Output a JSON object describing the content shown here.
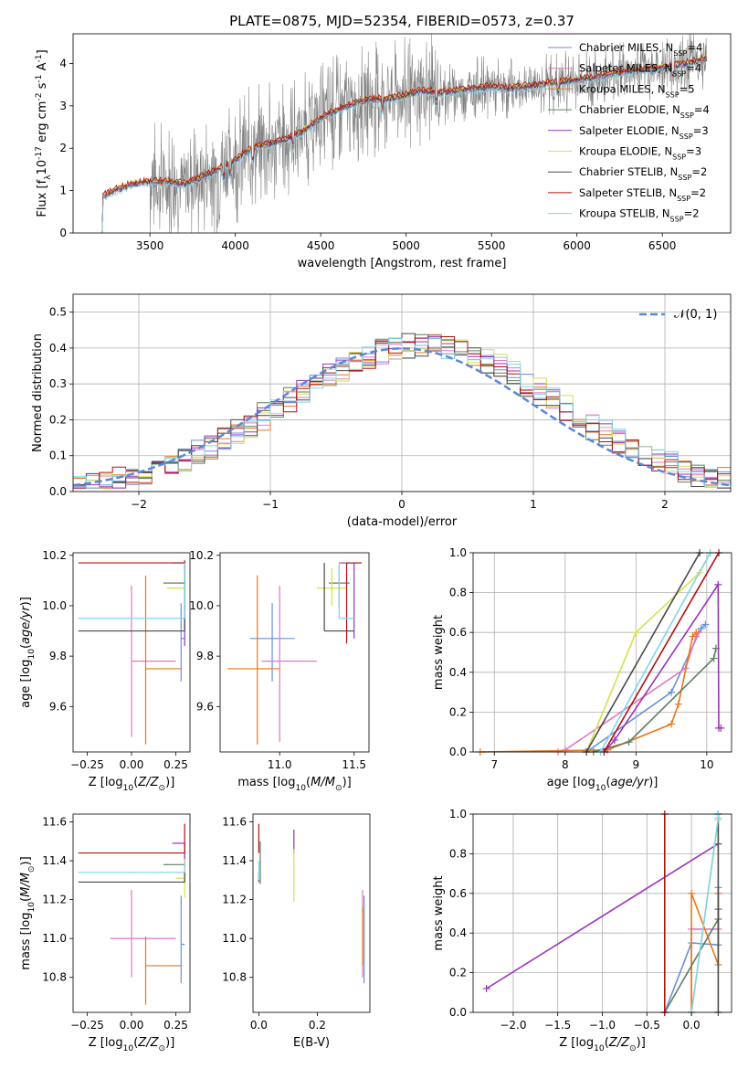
{
  "title": "PLATE=0875, MJD=52354, FIBERID=0573, z=0.37",
  "colors": {
    "chabrier_miles": "#6a8fd8",
    "salpeter_miles": "#e377c2",
    "kroupa_miles": "#e8771c",
    "chabrier_elodie": "#5f7f5f",
    "salpeter_elodie": "#9a32b8",
    "kroupa_elodie": "#d6e04a",
    "chabrier_stelib": "#4a4a4a",
    "salpeter_stelib": "#b01010",
    "kroupa_stelib": "#80d4ec",
    "data": "#808080",
    "gauss": "#5b87d9",
    "grid": "#b0b0b0"
  },
  "chart_data": [
    {
      "id": "spectrum",
      "type": "line",
      "xlabel": "wavelength [Angstrom, rest frame]",
      "ylabel": "Flux [f$_\\lambda$10$^{-17}$ erg cm$^{-2}$ s$^{-1}$ A$^{-1}$]",
      "xlim": [
        3050,
        6900
      ],
      "ylim": [
        0,
        4.7
      ],
      "xticks": [
        3500,
        4000,
        4500,
        5000,
        5500,
        6000,
        6500
      ],
      "yticks": [
        0,
        1,
        2,
        3,
        4
      ],
      "grid": false,
      "legend_position": "top-right",
      "legend": [
        {
          "label": "Chabrier MILES, N",
          "sub": "SSP",
          "suffix": "=4",
          "color_key": "chabrier_miles"
        },
        {
          "label": "Salpeter MILES, N",
          "sub": "SSP",
          "suffix": "=4",
          "color_key": "salpeter_miles"
        },
        {
          "label": "Kroupa MILES, N",
          "sub": "SSP",
          "suffix": "=5",
          "color_key": "kroupa_miles"
        },
        {
          "label": "Chabrier ELODIE, N",
          "sub": "SSP",
          "suffix": "=4",
          "color_key": "chabrier_elodie"
        },
        {
          "label": "Salpeter ELODIE, N",
          "sub": "SSP",
          "suffix": "=3",
          "color_key": "salpeter_elodie"
        },
        {
          "label": "Kroupa ELODIE, N",
          "sub": "SSP",
          "suffix": "=3",
          "color_key": "kroupa_elodie"
        },
        {
          "label": "Chabrier STELIB, N",
          "sub": "SSP",
          "suffix": "=2",
          "color_key": "chabrier_stelib"
        },
        {
          "label": "Salpeter STELIB, N",
          "sub": "SSP",
          "suffix": "=2",
          "color_key": "salpeter_stelib"
        },
        {
          "label": "Kroupa STELIB, N",
          "sub": "SSP",
          "suffix": "=2",
          "color_key": "kroupa_stelib"
        }
      ],
      "model_continuum": {
        "x": [
          3220,
          3300,
          3400,
          3500,
          3600,
          3700,
          3800,
          3900,
          4000,
          4100,
          4200,
          4300,
          4400,
          4500,
          4600,
          4700,
          4800,
          4900,
          5000,
          5100,
          5200,
          5300,
          5400,
          5500,
          5600,
          5700,
          5800,
          5900,
          6000,
          6100,
          6200,
          6300,
          6400,
          6500,
          6600,
          6700,
          6760
        ],
        "y": [
          0.85,
          1.0,
          1.15,
          1.2,
          1.2,
          1.15,
          1.3,
          1.5,
          1.7,
          2.0,
          2.1,
          2.2,
          2.4,
          2.7,
          2.9,
          3.05,
          3.15,
          3.15,
          3.25,
          3.35,
          3.3,
          3.35,
          3.4,
          3.45,
          3.4,
          3.45,
          3.5,
          3.55,
          3.6,
          3.65,
          3.75,
          3.8,
          3.85,
          3.9,
          3.95,
          4.05,
          4.1
        ]
      },
      "model_x_start": 3220,
      "data_x_range": [
        3500,
        6760
      ]
    },
    {
      "id": "residuals",
      "type": "histogram",
      "xlabel": "(data-model)/error",
      "ylabel": "Normed distribution",
      "xlim": [
        -2.5,
        2.5
      ],
      "ylim": [
        0,
        0.55
      ],
      "xticks": [
        -2,
        -1,
        0,
        1,
        2
      ],
      "yticks": [
        0.0,
        0.1,
        0.2,
        0.3,
        0.4,
        0.5
      ],
      "grid": true,
      "legend_position": "top-right",
      "legend": [
        {
          "label": "$\\mathcal{N}(0, 1)$",
          "color_key": "gauss"
        }
      ],
      "bin_width": 0.1
    },
    {
      "id": "z_age",
      "type": "scatter",
      "xlabel": "Z [log$_{10}$($Z/Z_\\odot$)]",
      "ylabel": "age  [log$_{10}$($age/yr$)]",
      "xlim": [
        -0.33,
        0.33
      ],
      "ylim": [
        9.42,
        10.21
      ],
      "xticks": [
        -0.25,
        0.0,
        0.25
      ],
      "yticks": [
        9.6,
        9.8,
        10.0,
        10.2
      ],
      "points": [
        {
          "c": "chabrier_miles",
          "x": 0.28,
          "xe": [
            0.0,
            0.02
          ],
          "y": 9.87,
          "ye": [
            0.17,
            0.14
          ]
        },
        {
          "c": "salpeter_miles",
          "x": 0.0,
          "xe": [
            0.0,
            0.25
          ],
          "y": 9.78,
          "ye": [
            0.3,
            0.3
          ]
        },
        {
          "c": "kroupa_miles",
          "x": 0.08,
          "xe": [
            0.0,
            0.2
          ],
          "y": 9.75,
          "ye": [
            0.3,
            0.37
          ]
        },
        {
          "c": "chabrier_elodie",
          "x": 0.3,
          "xe": [
            0.12,
            0.0
          ],
          "y": 10.09,
          "ye": [
            0.1,
            0.07
          ]
        },
        {
          "c": "salpeter_elodie",
          "x": 0.3,
          "xe": [
            0.07,
            0.0
          ],
          "y": 10.17,
          "ye": [
            0.33,
            0.0
          ]
        },
        {
          "c": "kroupa_elodie",
          "x": 0.3,
          "xe": [
            0.1,
            0.0
          ],
          "y": 10.07,
          "ye": [
            0.07,
            0.08
          ]
        },
        {
          "c": "chabrier_stelib",
          "x": 0.3,
          "xe": [
            0.6,
            0.0
          ],
          "y": 9.9,
          "ye": [
            0.0,
            0.27
          ]
        },
        {
          "c": "salpeter_stelib",
          "x": 0.3,
          "xe": [
            0.6,
            0.0
          ],
          "y": 10.17,
          "ye": [
            0.0,
            0.01
          ]
        },
        {
          "c": "kroupa_stelib",
          "x": 0.3,
          "xe": [
            0.6,
            0.0
          ],
          "y": 9.95,
          "ye": [
            0.0,
            0.22
          ]
        }
      ]
    },
    {
      "id": "mass_age",
      "type": "scatter",
      "xlabel": "mass [log$_{10}$($M/M_\\odot$)]",
      "ylabel": "",
      "xlim": [
        10.6,
        11.6
      ],
      "ylim": [
        9.42,
        10.21
      ],
      "xticks": [
        11.0,
        11.5
      ],
      "yticks": [
        9.6,
        9.8,
        10.0,
        10.2
      ],
      "points": [
        {
          "c": "chabrier_miles",
          "x": 10.95,
          "xe": [
            0.15,
            0.15
          ],
          "y": 9.87,
          "ye": [
            0.17,
            0.14
          ]
        },
        {
          "c": "salpeter_miles",
          "x": 11.0,
          "xe": [
            0.12,
            0.25
          ],
          "y": 9.78,
          "ye": [
            0.32,
            0.3
          ]
        },
        {
          "c": "kroupa_miles",
          "x": 10.85,
          "xe": [
            0.2,
            0.15
          ],
          "y": 9.75,
          "ye": [
            0.3,
            0.37
          ]
        },
        {
          "c": "chabrier_elodie",
          "x": 11.4,
          "xe": [
            0.07,
            0.07
          ],
          "y": 10.09,
          "ye": [
            0.1,
            0.07
          ]
        },
        {
          "c": "salpeter_elodie",
          "x": 11.5,
          "xe": [
            0.1,
            0.05
          ],
          "y": 10.17,
          "ye": [
            0.3,
            0.0
          ]
        },
        {
          "c": "kroupa_elodie",
          "x": 11.35,
          "xe": [
            0.1,
            0.1
          ],
          "y": 10.07,
          "ye": [
            0.07,
            0.08
          ]
        },
        {
          "c": "chabrier_stelib",
          "x": 11.3,
          "xe": [
            0.0,
            0.2
          ],
          "y": 9.9,
          "ye": [
            0.0,
            0.27
          ]
        },
        {
          "c": "salpeter_stelib",
          "x": 11.45,
          "xe": [
            0.0,
            0.1
          ],
          "y": 10.17,
          "ye": [
            0.32,
            0.0
          ]
        },
        {
          "c": "kroupa_stelib",
          "x": 11.4,
          "xe": [
            0.0,
            0.1
          ],
          "y": 9.95,
          "ye": [
            0.0,
            0.22
          ]
        }
      ]
    },
    {
      "id": "cum_age",
      "type": "line",
      "xlabel": "age  [log$_{10}$($age/yr$)]",
      "ylabel": "mass weight",
      "xlim": [
        6.7,
        10.35
      ],
      "ylim": [
        0,
        1.0
      ],
      "xticks": [
        7,
        8,
        9,
        10
      ],
      "yticks": [
        0.0,
        0.2,
        0.4,
        0.6,
        0.8,
        1.0
      ],
      "grid": true,
      "series": [
        {
          "c": "chabrier_miles",
          "x": [
            8.3,
            9.5,
            9.92,
            9.98
          ],
          "y": [
            0.0,
            0.3,
            0.62,
            0.64
          ]
        },
        {
          "c": "salpeter_miles",
          "x": [
            7.9,
            8.0,
            9.7,
            9.85,
            9.88
          ],
          "y": [
            0.0,
            0.01,
            0.42,
            0.58,
            0.6
          ]
        },
        {
          "c": "kroupa_miles",
          "x": [
            6.8,
            8.6,
            9.5,
            9.6,
            9.8,
            9.85
          ],
          "y": [
            0.0,
            0.01,
            0.14,
            0.24,
            0.58,
            0.6
          ]
        },
        {
          "c": "chabrier_elodie",
          "x": [
            8.4,
            8.9,
            10.1,
            10.13
          ],
          "y": [
            0.0,
            0.05,
            0.47,
            0.52
          ]
        },
        {
          "c": "salpeter_elodie",
          "x": [
            8.55,
            8.7,
            10.16,
            10.17,
            10.2
          ],
          "y": [
            0.0,
            0.06,
            0.84,
            0.12,
            0.12
          ]
        },
        {
          "c": "kroupa_elodie",
          "x": [
            8.3,
            9.0,
            9.9,
            10.05
          ],
          "y": [
            0.0,
            0.6,
            0.9,
            1.0
          ]
        },
        {
          "c": "chabrier_stelib",
          "x": [
            8.3,
            9.9
          ],
          "y": [
            0.0,
            1.0
          ]
        },
        {
          "c": "salpeter_stelib",
          "x": [
            8.55,
            10.17
          ],
          "y": [
            0.0,
            1.0
          ]
        },
        {
          "c": "kroupa_stelib",
          "x": [
            8.5,
            10.05
          ],
          "y": [
            0.0,
            1.0
          ]
        }
      ]
    },
    {
      "id": "z_mass",
      "type": "scatter",
      "xlabel": "Z [log$_{10}$($Z/Z_\\odot$)]",
      "ylabel": "mass [log$_{10}$($M/M_\\odot$)]",
      "xlim": [
        -0.33,
        0.33
      ],
      "ylim": [
        10.62,
        11.64
      ],
      "xticks": [
        -0.25,
        0.0,
        0.25
      ],
      "yticks": [
        10.8,
        11.0,
        11.2,
        11.4,
        11.6
      ],
      "points": [
        {
          "c": "chabrier_miles",
          "x": 0.28,
          "xe": [
            0.0,
            0.02
          ],
          "y": 10.97,
          "ye": [
            0.2,
            0.25
          ]
        },
        {
          "c": "salpeter_miles",
          "x": 0.0,
          "xe": [
            0.12,
            0.25
          ],
          "y": 11.0,
          "ye": [
            0.2,
            0.25
          ]
        },
        {
          "c": "kroupa_miles",
          "x": 0.08,
          "xe": [
            0.0,
            0.2
          ],
          "y": 10.86,
          "ye": [
            0.2,
            0.15
          ]
        },
        {
          "c": "chabrier_elodie",
          "x": 0.3,
          "xe": [
            0.12,
            0.0
          ],
          "y": 11.38,
          "ye": [
            0.05,
            0.07
          ]
        },
        {
          "c": "salpeter_elodie",
          "x": 0.3,
          "xe": [
            0.07,
            0.0
          ],
          "y": 11.49,
          "ye": [
            0.2,
            0.0
          ]
        },
        {
          "c": "kroupa_elodie",
          "x": 0.3,
          "xe": [
            0.05,
            0.0
          ],
          "y": 11.31,
          "ye": [
            0.1,
            0.1
          ]
        },
        {
          "c": "chabrier_stelib",
          "x": 0.3,
          "xe": [
            0.6,
            0.0
          ],
          "y": 11.29,
          "ye": [
            0.0,
            0.05
          ]
        },
        {
          "c": "salpeter_stelib",
          "x": 0.3,
          "xe": [
            0.6,
            0.0
          ],
          "y": 11.44,
          "ye": [
            0.0,
            0.15
          ]
        },
        {
          "c": "kroupa_stelib",
          "x": 0.3,
          "xe": [
            0.6,
            0.0
          ],
          "y": 11.34,
          "ye": [
            0.0,
            0.06
          ]
        }
      ]
    },
    {
      "id": "ebv_mass",
      "type": "scatter",
      "xlabel": "E(B-V)",
      "ylabel": "",
      "xlim": [
        -0.02,
        0.38
      ],
      "ylim": [
        10.62,
        11.64
      ],
      "xticks": [
        0.0,
        0.2
      ],
      "yticks": [
        10.8,
        11.0,
        11.2,
        11.4,
        11.6
      ],
      "points": [
        {
          "c": "chabrier_miles",
          "x": 0.36,
          "y": 10.97,
          "ye": [
            0.2,
            0.25
          ]
        },
        {
          "c": "salpeter_miles",
          "x": 0.355,
          "y": 11.0,
          "ye": [
            0.2,
            0.25
          ]
        },
        {
          "c": "kroupa_miles",
          "x": 0.355,
          "y": 10.86,
          "ye": [
            0.0,
            0.3
          ]
        },
        {
          "c": "chabrier_elodie",
          "x": 0.005,
          "y": 11.38,
          "ye": [
            0.1,
            0.12
          ]
        },
        {
          "c": "salpeter_elodie",
          "x": 0.12,
          "y": 11.49,
          "ye": [
            0.05,
            0.07
          ]
        },
        {
          "c": "kroupa_elodie",
          "x": 0.12,
          "y": 11.31,
          "ye": [
            0.12,
            0.15
          ]
        },
        {
          "c": "chabrier_stelib",
          "x": 0.0,
          "y": 11.29,
          "ye": [
            0.0,
            0.05
          ]
        },
        {
          "c": "salpeter_stelib",
          "x": 0.0,
          "y": 11.44,
          "ye": [
            0.0,
            0.15
          ]
        },
        {
          "c": "kroupa_stelib",
          "x": 0.0,
          "y": 11.34,
          "ye": [
            0.04,
            0.06
          ]
        }
      ]
    },
    {
      "id": "cum_z",
      "type": "line",
      "xlabel": "Z [log$_{10}$($Z/Z_\\odot$)]",
      "ylabel": "mass weight",
      "xlim": [
        -2.45,
        0.45
      ],
      "ylim": [
        0,
        1.0
      ],
      "xticks": [
        -2.0,
        -1.5,
        -1.0,
        -0.5,
        0.0
      ],
      "yticks": [
        0.0,
        0.2,
        0.4,
        0.6,
        0.8,
        1.0
      ],
      "grid": true,
      "series": [
        {
          "c": "chabrier_miles",
          "x": [
            -0.3,
            0.0,
            0.3,
            0.3
          ],
          "y": [
            0.0,
            0.35,
            0.34,
            0.63
          ]
        },
        {
          "c": "salpeter_miles",
          "x": [
            0.0,
            0.0,
            0.3,
            0.3
          ],
          "y": [
            0.0,
            0.42,
            0.42,
            0.6
          ]
        },
        {
          "c": "kroupa_miles",
          "x": [
            0.0,
            0.0,
            0.3,
            0.3
          ],
          "y": [
            0.0,
            0.6,
            0.24,
            0.6
          ]
        },
        {
          "c": "chabrier_elodie",
          "x": [
            -0.3,
            0.3,
            0.3
          ],
          "y": [
            0.0,
            0.47,
            0.52
          ]
        },
        {
          "c": "salpeter_elodie",
          "x": [
            -2.3,
            0.3,
            0.3
          ],
          "y": [
            0.12,
            0.85,
            0.85
          ]
        },
        {
          "c": "kroupa_elodie",
          "x": [
            0.0,
            0.3,
            0.3
          ],
          "y": [
            0.0,
            0.97,
            1.0
          ]
        },
        {
          "c": "chabrier_stelib",
          "x": [
            0.3,
            0.3
          ],
          "y": [
            0.0,
            1.0
          ]
        },
        {
          "c": "salpeter_stelib",
          "x": [
            -0.3,
            -0.3
          ],
          "y": [
            0.0,
            1.0
          ]
        },
        {
          "c": "kroupa_stelib",
          "x": [
            0.0,
            0.3,
            0.3
          ],
          "y": [
            0.0,
            0.98,
            1.0
          ]
        }
      ]
    }
  ]
}
